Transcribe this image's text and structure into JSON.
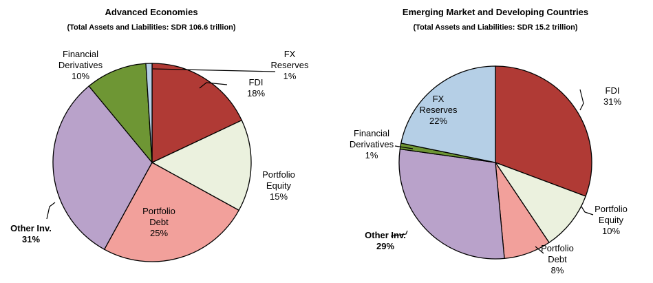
{
  "chart_data": [
    {
      "type": "pie",
      "title": "Advanced Economies",
      "subtitle": "(Total Assets and Liabilities: SDR 106.6 trillion)",
      "categories": [
        "FDI",
        "Portfolio Equity",
        "Portfolio Debt",
        "Other Inv.",
        "Financial Derivatives",
        "FX Reserves"
      ],
      "values": [
        18,
        15,
        25,
        31,
        10,
        1
      ],
      "value_labels": [
        "18%",
        "15%",
        "25%",
        "31%",
        "10%",
        "1%"
      ],
      "colors": [
        "#b03a35",
        "#ebf1de",
        "#f2a09b",
        "#b9a2ca",
        "#6e9634",
        "#b5cfe6"
      ]
    },
    {
      "type": "pie",
      "title": "Emerging Market and Developing Countries",
      "subtitle": "(Total Assets and Liabilities: SDR 15.2 trillion)",
      "categories": [
        "FDI",
        "Portfolio Equity",
        "Portfolio Debt",
        "Other Inv.",
        "Financial Derivatives",
        "FX Reserves"
      ],
      "values": [
        31,
        10,
        8,
        29,
        1,
        22
      ],
      "value_labels": [
        "31%",
        "10%",
        "8%",
        "29%",
        "1%",
        "22%"
      ],
      "colors": [
        "#b03a35",
        "#ebf1de",
        "#f2a09b",
        "#b9a2ca",
        "#6e9634",
        "#b5cfe6"
      ]
    }
  ]
}
